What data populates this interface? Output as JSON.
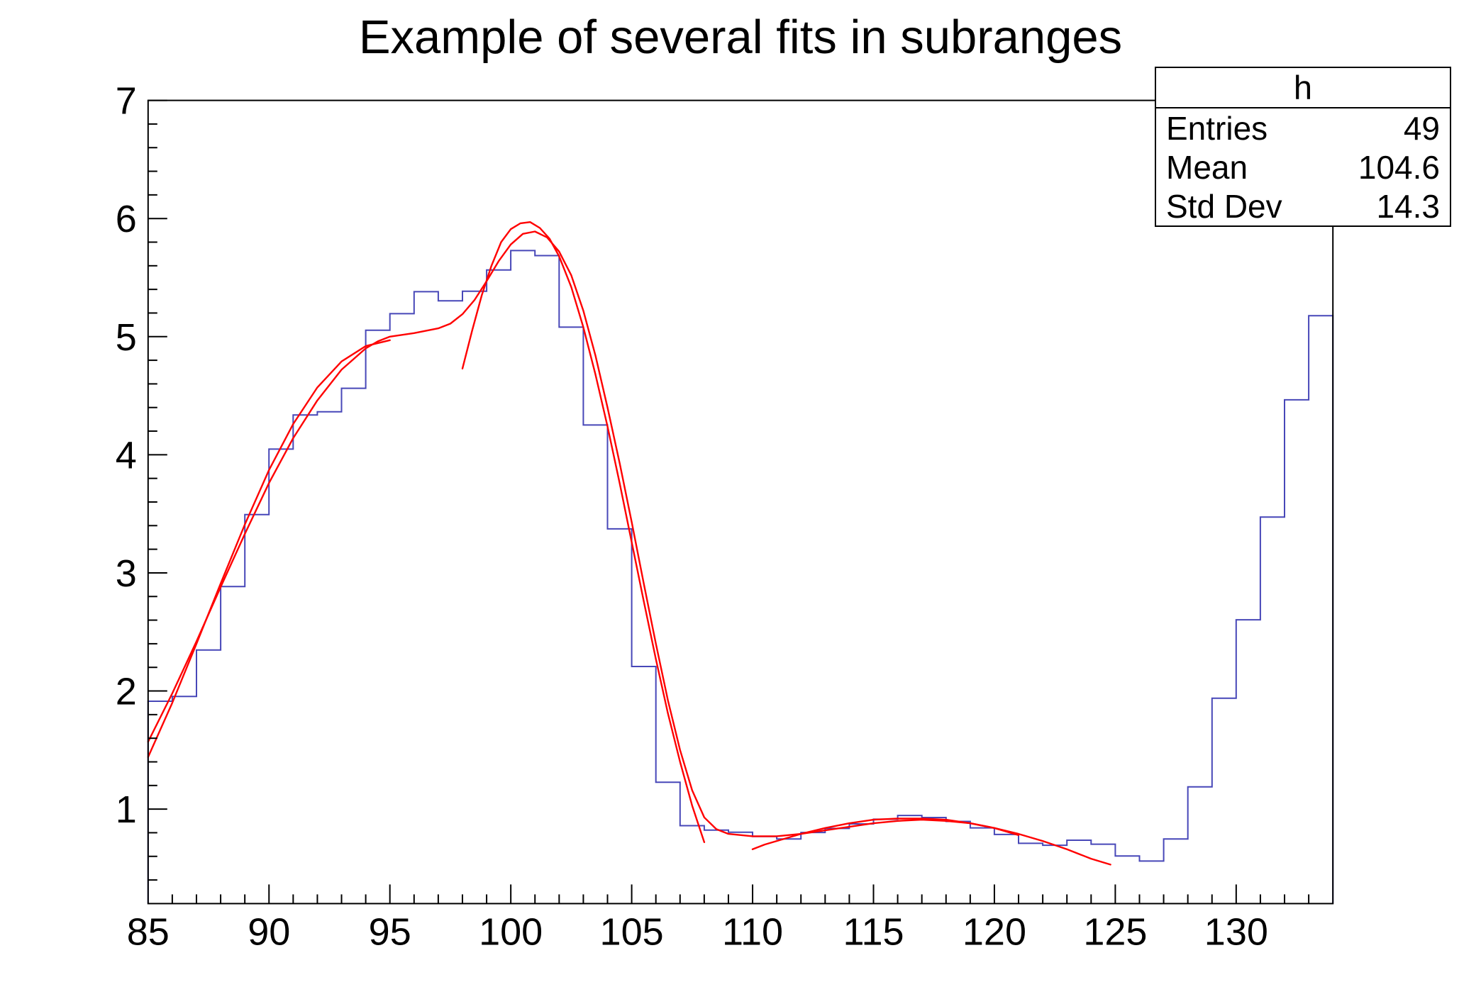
{
  "title": "Example of several fits in subranges",
  "stats_box": {
    "name": "h",
    "rows": [
      {
        "label": "Entries",
        "value": "49"
      },
      {
        "label": "Mean",
        "value": "104.6"
      },
      {
        "label": "Std Dev",
        "value": "14.3"
      }
    ]
  },
  "colors": {
    "histogram": "#4747b8",
    "fit": "#ff0000",
    "frame": "#000000",
    "background": "#ffffff"
  },
  "chart_data": {
    "type": "line",
    "title": "Example of several fits in subranges",
    "xlabel": "",
    "ylabel": "",
    "grid": false,
    "legend": false,
    "x_axis": {
      "min": 85,
      "max": 134,
      "major_step": 5,
      "minor_step": 1,
      "labels": [
        85,
        90,
        95,
        100,
        105,
        110,
        115,
        120,
        125,
        130
      ]
    },
    "y_axis": {
      "min": 0.2,
      "max": 7,
      "major_step": 1,
      "minor_step": 0.2,
      "labels": [
        1,
        2,
        3,
        4,
        5,
        6,
        7
      ]
    },
    "histogram": {
      "name": "h",
      "entries": 49,
      "mean": 104.6,
      "std_dev": 14.3,
      "bin_start": 85,
      "bin_width": 1,
      "values": [
        1.9135,
        1.9538,
        2.3474,
        2.8837,
        3.4936,
        4.0476,
        4.3372,
        4.3643,
        4.563,
        5.0542,
        5.1942,
        5.3805,
        5.3032,
        5.3846,
        5.564,
        5.7285,
        5.6858,
        5.08,
        4.2518,
        3.3722,
        2.2074,
        1.2275,
        0.8598,
        0.8221,
        0.8047,
        0.7684,
        0.747,
        0.802,
        0.8362,
        0.8745,
        0.9144,
        0.9463,
        0.9285,
        0.8955,
        0.8411,
        0.7854,
        0.7101,
        0.6939,
        0.7364,
        0.7033,
        0.6029,
        0.56,
        0.7477,
        1.1888,
        1.9382,
        2.6027,
        3.473,
        4.465,
        5.177
      ]
    },
    "fits": [
      {
        "name": "total",
        "range": [
          85,
          125
        ],
        "points": [
          [
            85,
            1.57
          ],
          [
            86,
            1.98
          ],
          [
            87,
            2.42
          ],
          [
            88,
            2.88
          ],
          [
            89,
            3.33
          ],
          [
            90,
            3.76
          ],
          [
            91,
            4.14
          ],
          [
            92,
            4.46
          ],
          [
            93,
            4.72
          ],
          [
            94,
            4.9
          ],
          [
            94.5,
            4.96
          ],
          [
            95,
            5.0
          ],
          [
            96,
            5.03
          ],
          [
            97,
            5.07
          ],
          [
            97.5,
            5.11
          ],
          [
            98,
            5.19
          ],
          [
            98.5,
            5.31
          ],
          [
            99,
            5.47
          ],
          [
            99.5,
            5.64
          ],
          [
            100,
            5.78
          ],
          [
            100.5,
            5.87
          ],
          [
            101,
            5.89
          ],
          [
            101.5,
            5.84
          ],
          [
            102,
            5.72
          ],
          [
            102.5,
            5.52
          ],
          [
            103,
            5.22
          ],
          [
            103.5,
            4.84
          ],
          [
            104,
            4.4
          ],
          [
            104.5,
            3.93
          ],
          [
            105,
            3.43
          ],
          [
            105.5,
            2.91
          ],
          [
            106,
            2.4
          ],
          [
            106.5,
            1.92
          ],
          [
            107,
            1.5
          ],
          [
            107.5,
            1.16
          ],
          [
            108,
            0.93
          ],
          [
            108.5,
            0.83
          ],
          [
            109,
            0.79
          ],
          [
            110,
            0.77
          ],
          [
            111,
            0.77
          ],
          [
            112,
            0.79
          ],
          [
            113,
            0.82
          ],
          [
            114,
            0.85
          ],
          [
            115,
            0.88
          ],
          [
            116,
            0.9
          ],
          [
            117,
            0.91
          ],
          [
            118,
            0.9
          ],
          [
            119,
            0.88
          ],
          [
            120,
            0.84
          ],
          [
            121,
            0.79
          ],
          [
            122,
            0.73
          ],
          [
            123,
            0.66
          ],
          [
            124,
            0.58
          ],
          [
            124.8,
            0.53
          ]
        ]
      },
      {
        "name": "g1",
        "range": [
          85,
          95
        ],
        "points": [
          [
            85,
            1.44
          ],
          [
            86,
            1.9
          ],
          [
            87,
            2.4
          ],
          [
            88,
            2.91
          ],
          [
            89,
            3.41
          ],
          [
            90,
            3.87
          ],
          [
            91,
            4.26
          ],
          [
            92,
            4.57
          ],
          [
            93,
            4.79
          ],
          [
            94,
            4.92
          ],
          [
            95,
            4.97
          ]
        ]
      },
      {
        "name": "g2",
        "range": [
          98,
          108
        ],
        "points": [
          [
            98,
            4.73
          ],
          [
            98.4,
            5.05
          ],
          [
            98.8,
            5.35
          ],
          [
            99.2,
            5.6
          ],
          [
            99.6,
            5.8
          ],
          [
            100,
            5.91
          ],
          [
            100.4,
            5.96
          ],
          [
            100.8,
            5.97
          ],
          [
            101.2,
            5.92
          ],
          [
            101.6,
            5.83
          ],
          [
            102,
            5.68
          ],
          [
            102.5,
            5.42
          ],
          [
            103,
            5.08
          ],
          [
            103.5,
            4.68
          ],
          [
            104,
            4.24
          ],
          [
            104.5,
            3.76
          ],
          [
            105,
            3.26
          ],
          [
            105.5,
            2.76
          ],
          [
            106,
            2.27
          ],
          [
            106.5,
            1.81
          ],
          [
            107,
            1.4
          ],
          [
            107.5,
            1.03
          ],
          [
            108,
            0.72
          ]
        ]
      },
      {
        "name": "g3",
        "range": [
          110,
          121
        ],
        "points": [
          [
            110,
            0.66
          ],
          [
            110.5,
            0.7
          ],
          [
            111,
            0.73
          ],
          [
            112,
            0.79
          ],
          [
            113,
            0.84
          ],
          [
            114,
            0.88
          ],
          [
            115,
            0.91
          ],
          [
            116,
            0.92
          ],
          [
            117,
            0.92
          ],
          [
            118,
            0.91
          ],
          [
            119,
            0.88
          ],
          [
            120,
            0.84
          ],
          [
            120.5,
            0.81
          ],
          [
            121,
            0.78
          ]
        ]
      }
    ]
  }
}
